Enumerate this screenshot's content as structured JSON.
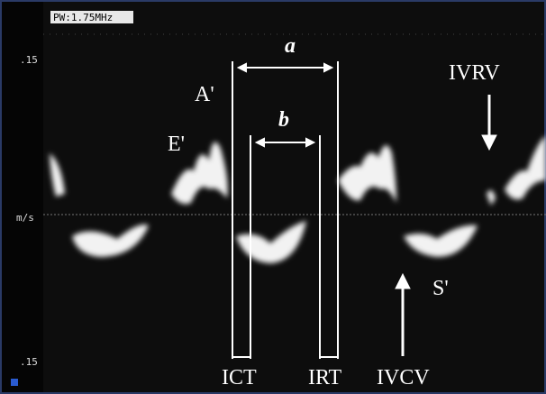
{
  "header": {
    "mode": "PW:1.75MHz"
  },
  "scale": {
    "top": ".15",
    "unit": "m/s",
    "bottom": ".15"
  },
  "labels": {
    "a": "a",
    "b": "b",
    "a_prime": "A'",
    "e_prime": "E'",
    "s_prime": "S'",
    "ivrv": "IVRV",
    "ict": "ICT",
    "irt": "IRT",
    "ivcv": "IVCV"
  }
}
